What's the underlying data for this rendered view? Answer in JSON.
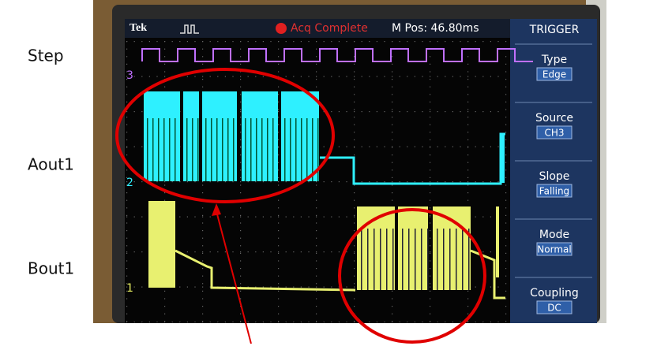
{
  "side_labels": [
    "Step",
    "Aout1",
    "Bout1"
  ],
  "scope": {
    "brand": "Tek",
    "status": "Acq Complete",
    "position": "M Pos: 46.80ms",
    "menu_title": "TRIGGER",
    "menu": [
      {
        "label": "Type",
        "value": "Edge"
      },
      {
        "label": "Source",
        "value": "CH3"
      },
      {
        "label": "Slope",
        "value": "Falling"
      },
      {
        "label": "Mode",
        "value": "Normal"
      },
      {
        "label": "Coupling",
        "value": "DC"
      }
    ],
    "channel_markers": [
      "3",
      "2",
      "1"
    ]
  }
}
